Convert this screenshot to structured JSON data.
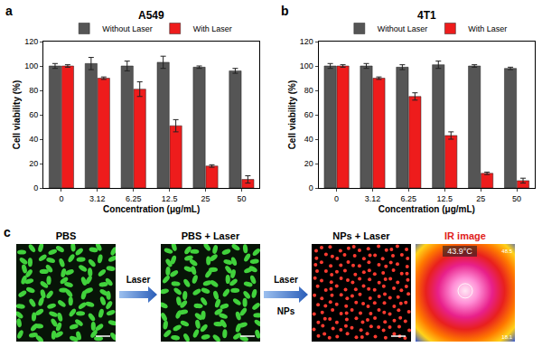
{
  "chart_data": [
    {
      "type": "bar",
      "annotations": [
        "a"
      ],
      "title": "A549",
      "x_label": "Concentration (μg/mL)",
      "y_label": "Cell viability (%)",
      "categories": [
        "0",
        "3.12",
        "6.25",
        "12.5",
        "25",
        "50"
      ],
      "series": [
        {
          "name": "Without Laser",
          "color": "#555555",
          "values": [
            100,
            102,
            100,
            103,
            99,
            96
          ],
          "errors": [
            2,
            5,
            4,
            5,
            1,
            2
          ]
        },
        {
          "name": "With Laser",
          "color": "#ee1c1c",
          "values": [
            100,
            90,
            81,
            51,
            18,
            7
          ],
          "errors": [
            1,
            1,
            6,
            5,
            1,
            3
          ]
        }
      ],
      "ylim": [
        0,
        120
      ],
      "yticks": [
        0,
        20,
        40,
        60,
        80,
        100,
        120
      ],
      "grid": false,
      "legend": "top"
    },
    {
      "type": "bar",
      "annotations": [
        "b"
      ],
      "title": "4T1",
      "x_label": "Concentration (μg/mL)",
      "y_label": "Cell viability (%)",
      "categories": [
        "0",
        "3.12",
        "6.25",
        "12.5",
        "25",
        "50"
      ],
      "series": [
        {
          "name": "Without Laser",
          "color": "#555555",
          "values": [
            100,
            100,
            99,
            101,
            100,
            98
          ],
          "errors": [
            2,
            2,
            2,
            3,
            1,
            1
          ]
        },
        {
          "name": "With Laser",
          "color": "#ee1c1c",
          "values": [
            100,
            90,
            75,
            43,
            12,
            6
          ],
          "errors": [
            1,
            1,
            3,
            3,
            1,
            2
          ]
        }
      ],
      "ylim": [
        0,
        120
      ],
      "yticks": [
        0,
        20,
        40,
        60,
        80,
        100,
        120
      ],
      "grid": false,
      "legend": "top"
    }
  ],
  "panel_c": {
    "label": "c",
    "images": [
      "PBS",
      "PBS + Laser",
      "NPs + Laser",
      "IR image"
    ],
    "arrows": [
      {
        "label": "Laser"
      },
      {
        "label": "Laser",
        "sublabel": "NPs"
      }
    ],
    "ir_readout": {
      "temperature": "43.9°C",
      "max": "48.5",
      "min": "18.1"
    }
  }
}
